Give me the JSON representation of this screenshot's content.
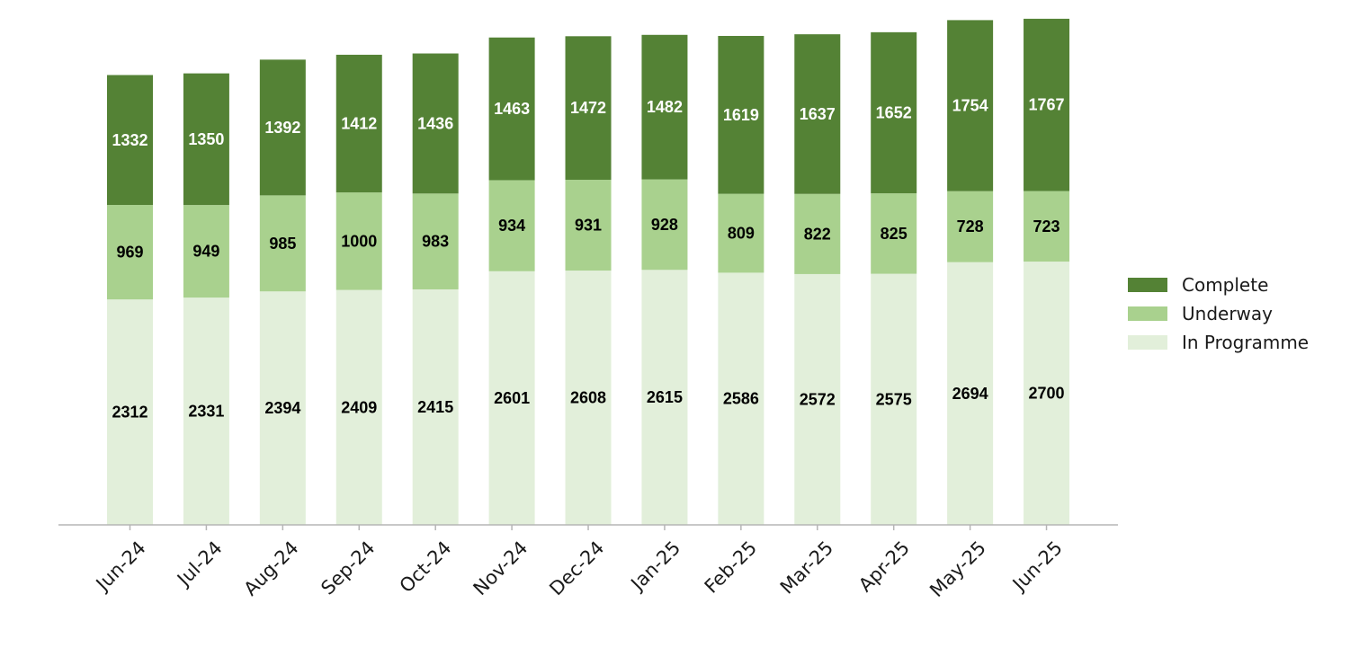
{
  "chart_data": {
    "type": "bar",
    "stacked": true,
    "categories": [
      "Jun-24",
      "Jul-24",
      "Aug-24",
      "Sep-24",
      "Oct-24",
      "Nov-24",
      "Dec-24",
      "Jan-25",
      "Feb-25",
      "Mar-25",
      "Apr-25",
      "May-25",
      "Jun-25"
    ],
    "series": [
      {
        "name": "In Programme",
        "color": "#e2efda",
        "label_color": "#000000",
        "values": [
          2312,
          2331,
          2394,
          2409,
          2415,
          2601,
          2608,
          2615,
          2586,
          2572,
          2575,
          2694,
          2700
        ]
      },
      {
        "name": "Underway",
        "color": "#a9d18e",
        "label_color": "#000000",
        "values": [
          969,
          949,
          985,
          1000,
          983,
          934,
          931,
          928,
          809,
          822,
          825,
          728,
          723
        ]
      },
      {
        "name": "Complete",
        "color": "#548235",
        "label_color": "#ffffff",
        "values": [
          1332,
          1350,
          1392,
          1412,
          1436,
          1463,
          1472,
          1482,
          1619,
          1637,
          1652,
          1754,
          1767
        ]
      }
    ],
    "legend_order": [
      "Complete",
      "Underway",
      "In Programme"
    ],
    "legend_position": "right",
    "title": "",
    "xlabel": "",
    "ylabel": "",
    "ylim": [
      0,
      5200
    ],
    "grid": false,
    "y_axis_visible": false
  }
}
